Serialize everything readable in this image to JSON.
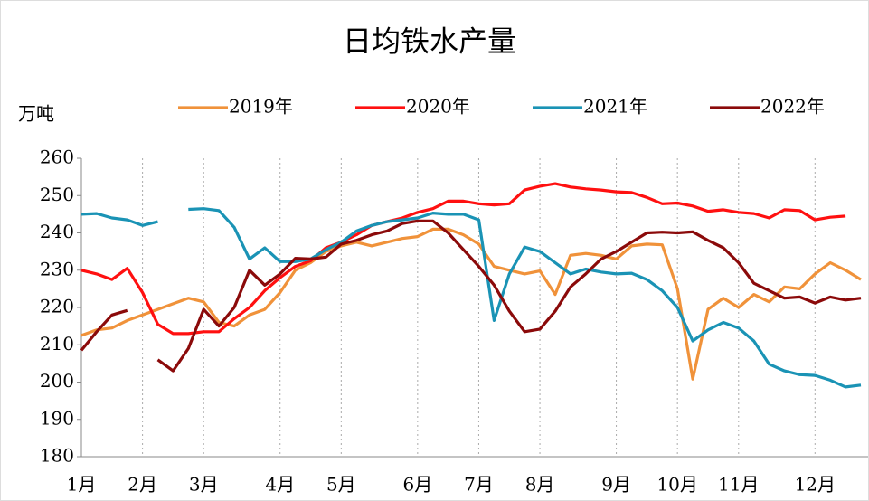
{
  "chart_data": {
    "type": "line",
    "title": "日均铁水产量",
    "y_label": "万吨",
    "categories": [
      "1月",
      null,
      null,
      null,
      "2月",
      null,
      null,
      null,
      "3月",
      null,
      null,
      null,
      null,
      "4月",
      null,
      null,
      null,
      "5月",
      null,
      null,
      null,
      null,
      "6月",
      null,
      null,
      null,
      "7月",
      null,
      null,
      null,
      "8月",
      null,
      null,
      null,
      null,
      "9月",
      null,
      null,
      null,
      "10月",
      null,
      null,
      null,
      "11月",
      null,
      null,
      null,
      null,
      "12月",
      null,
      null,
      null
    ],
    "series": [
      {
        "name": "2019年",
        "color": "#f0923a",
        "values": [
          212.5,
          214,
          214.5,
          216.5,
          218,
          219.5,
          221,
          222.5,
          221.5,
          216,
          215,
          218,
          219.5,
          224,
          230,
          232,
          235,
          236.5,
          237.5,
          236.5,
          237.5,
          238.5,
          239,
          241,
          241,
          239.5,
          237,
          231,
          230,
          229,
          229.8,
          223.5,
          234,
          234.5,
          234,
          233,
          236.5,
          237,
          236.8,
          225,
          200.8,
          219.5,
          222.5,
          220,
          223.5,
          221.5,
          225.5,
          225,
          229,
          232,
          230,
          227.5
        ]
      },
      {
        "name": "2020年",
        "color": "#ff1010",
        "values": [
          230,
          229,
          227.5,
          230.5,
          224,
          215.5,
          213,
          213,
          213.5,
          213.5,
          217,
          220,
          224.5,
          228,
          231,
          232.5,
          236,
          237.5,
          239.5,
          242,
          243,
          244,
          245.5,
          246.5,
          248.5,
          248.5,
          247.8,
          247.5,
          247.8,
          251.5,
          252.5,
          253.2,
          252.3,
          251.8,
          251.5,
          251,
          250.8,
          249.5,
          247.8,
          248,
          247.2,
          245.8,
          246.2,
          245.5,
          245.2,
          244,
          246.2,
          246,
          243.5,
          244.2,
          244.5,
          null
        ]
      },
      {
        "name": "2021年",
        "color": "#1a93b5",
        "values": [
          245,
          245.2,
          244,
          243.5,
          242,
          243,
          null,
          246.3,
          246.5,
          246,
          241.5,
          233,
          236,
          232.3,
          232.3,
          233,
          235.5,
          237.5,
          240.5,
          242,
          243,
          243.5,
          244,
          245.3,
          245,
          245,
          243.5,
          216.5,
          229,
          236.2,
          235,
          232,
          229,
          230.3,
          229.5,
          229,
          229.2,
          227.5,
          224.5,
          220,
          211,
          214,
          216,
          214.5,
          211,
          204.8,
          203,
          202,
          201.8,
          200.5,
          198.7,
          199.2
        ]
      },
      {
        "name": "2022年",
        "color": "#8b0a0a",
        "values": [
          208.5,
          213.5,
          218,
          219.2,
          null,
          206,
          203,
          209,
          219.5,
          215,
          220,
          230,
          226,
          229,
          233.2,
          233,
          233.5,
          237,
          238,
          239.5,
          240.5,
          242.5,
          243.2,
          243.2,
          240,
          235.5,
          231,
          226,
          219,
          213.5,
          214.2,
          219,
          225.5,
          229,
          233,
          235,
          237.5,
          240,
          240.2,
          240,
          240.3,
          238,
          236,
          232,
          226.5,
          224.5,
          222.5,
          222.8,
          221.2,
          222.8,
          222,
          222.5
        ]
      }
    ],
    "ylim": [
      180,
      260
    ],
    "yticks": [
      180,
      190,
      200,
      210,
      220,
      230,
      240,
      250,
      260
    ],
    "grid": true
  }
}
